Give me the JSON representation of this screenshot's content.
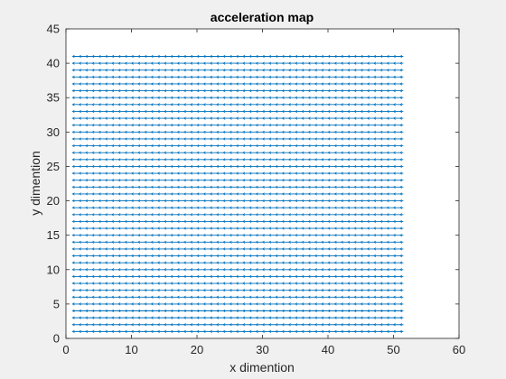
{
  "chart_data": {
    "type": "quiver",
    "title": "acceleration map",
    "xlabel": "x dimention",
    "ylabel": "y dimention",
    "xlim": [
      0,
      60
    ],
    "ylim": [
      0,
      45
    ],
    "xticks": [
      "0",
      "10",
      "20",
      "30",
      "40",
      "50",
      "60"
    ],
    "yticks": [
      "0",
      "5",
      "10",
      "15",
      "20",
      "25",
      "30",
      "35",
      "40",
      "45"
    ],
    "grid": false,
    "box": true,
    "background": "#ffffff",
    "figure_background": "#f0f0f0",
    "series_color": "#0072bd",
    "x_range": [
      1,
      51.5
    ],
    "y_values": [
      1,
      2,
      3,
      4,
      5,
      6,
      7,
      8,
      9,
      10,
      11,
      12,
      13,
      14,
      15,
      16,
      17,
      18,
      19,
      20,
      21,
      22,
      23,
      24,
      25,
      26,
      27,
      28,
      29,
      30,
      31,
      32,
      33,
      34,
      35,
      36,
      37,
      38,
      39,
      40,
      41
    ],
    "arrow_direction": "left"
  }
}
